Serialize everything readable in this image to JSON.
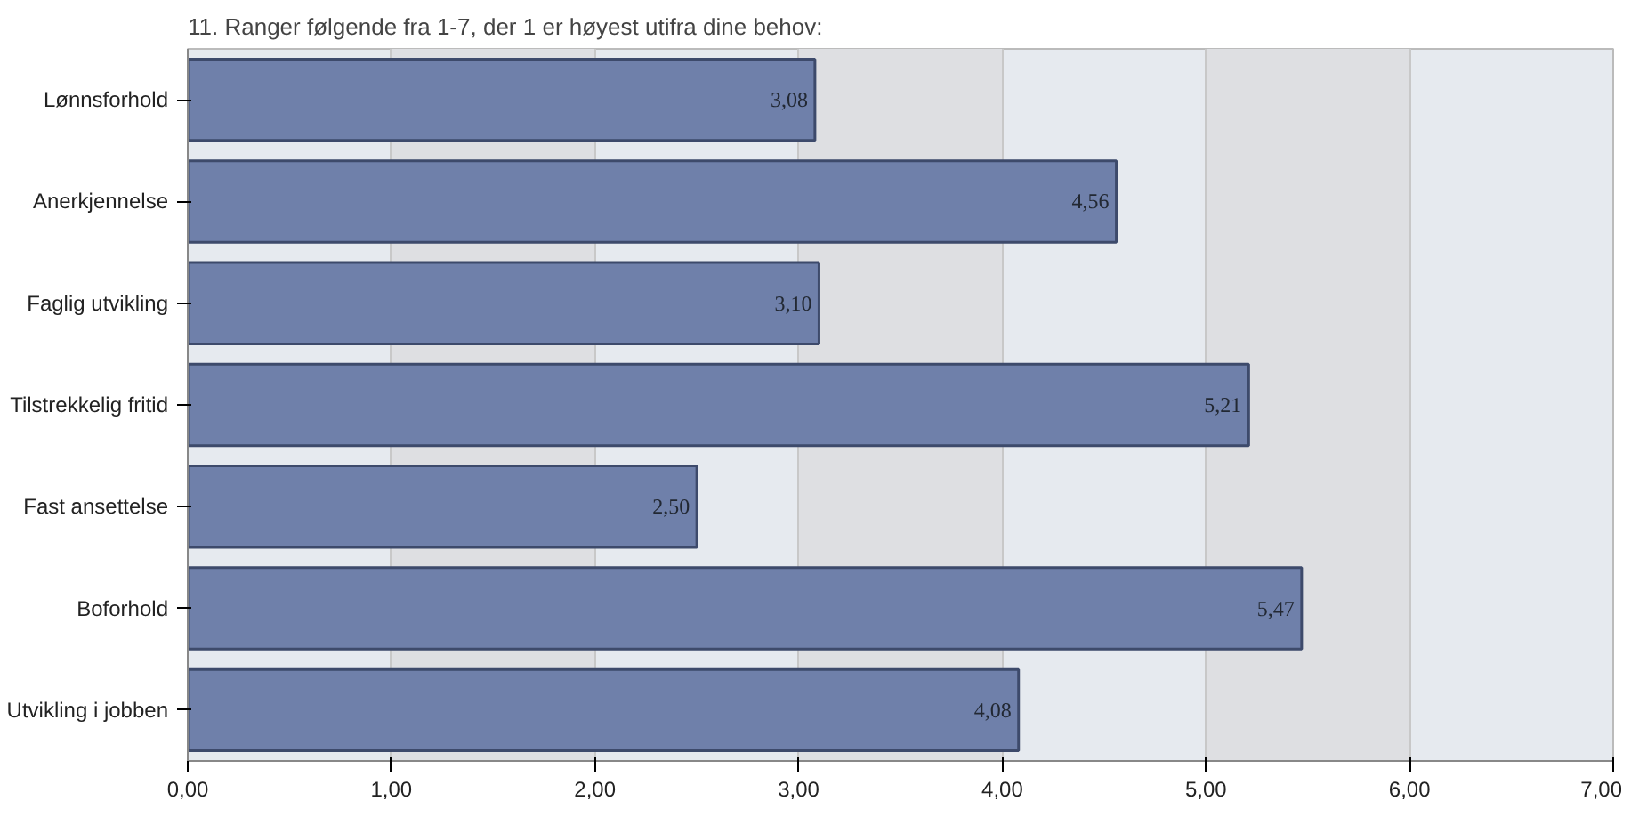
{
  "chart_data": {
    "type": "bar",
    "orientation": "horizontal",
    "title": "11. Ranger følgende fra 1-7, der 1 er høyest utifra dine behov:",
    "categories": [
      "Lønnsforhold",
      "Anerkjennelse",
      "Faglig utvikling",
      "Tilstrekkelig fritid",
      "Fast ansettelse",
      "Boforhold",
      "Utvikling i jobben"
    ],
    "values": [
      3.08,
      4.56,
      3.1,
      5.21,
      2.5,
      5.47,
      4.08
    ],
    "value_labels": [
      "3,08",
      "4,56",
      "3,10",
      "5,21",
      "2,50",
      "5,47",
      "4,08"
    ],
    "color": "#6f80aa",
    "xlim": [
      0,
      7
    ],
    "xticks": [
      {
        "value": 0,
        "label": "0,00"
      },
      {
        "value": 1,
        "label": "1,00"
      },
      {
        "value": 2,
        "label": "2,00"
      },
      {
        "value": 3,
        "label": "3,00"
      },
      {
        "value": 4,
        "label": "4,00"
      },
      {
        "value": 5,
        "label": "5,00"
      },
      {
        "value": 6,
        "label": "6,00"
      },
      {
        "value": 7,
        "label": "7,00"
      }
    ],
    "grid": "x"
  }
}
